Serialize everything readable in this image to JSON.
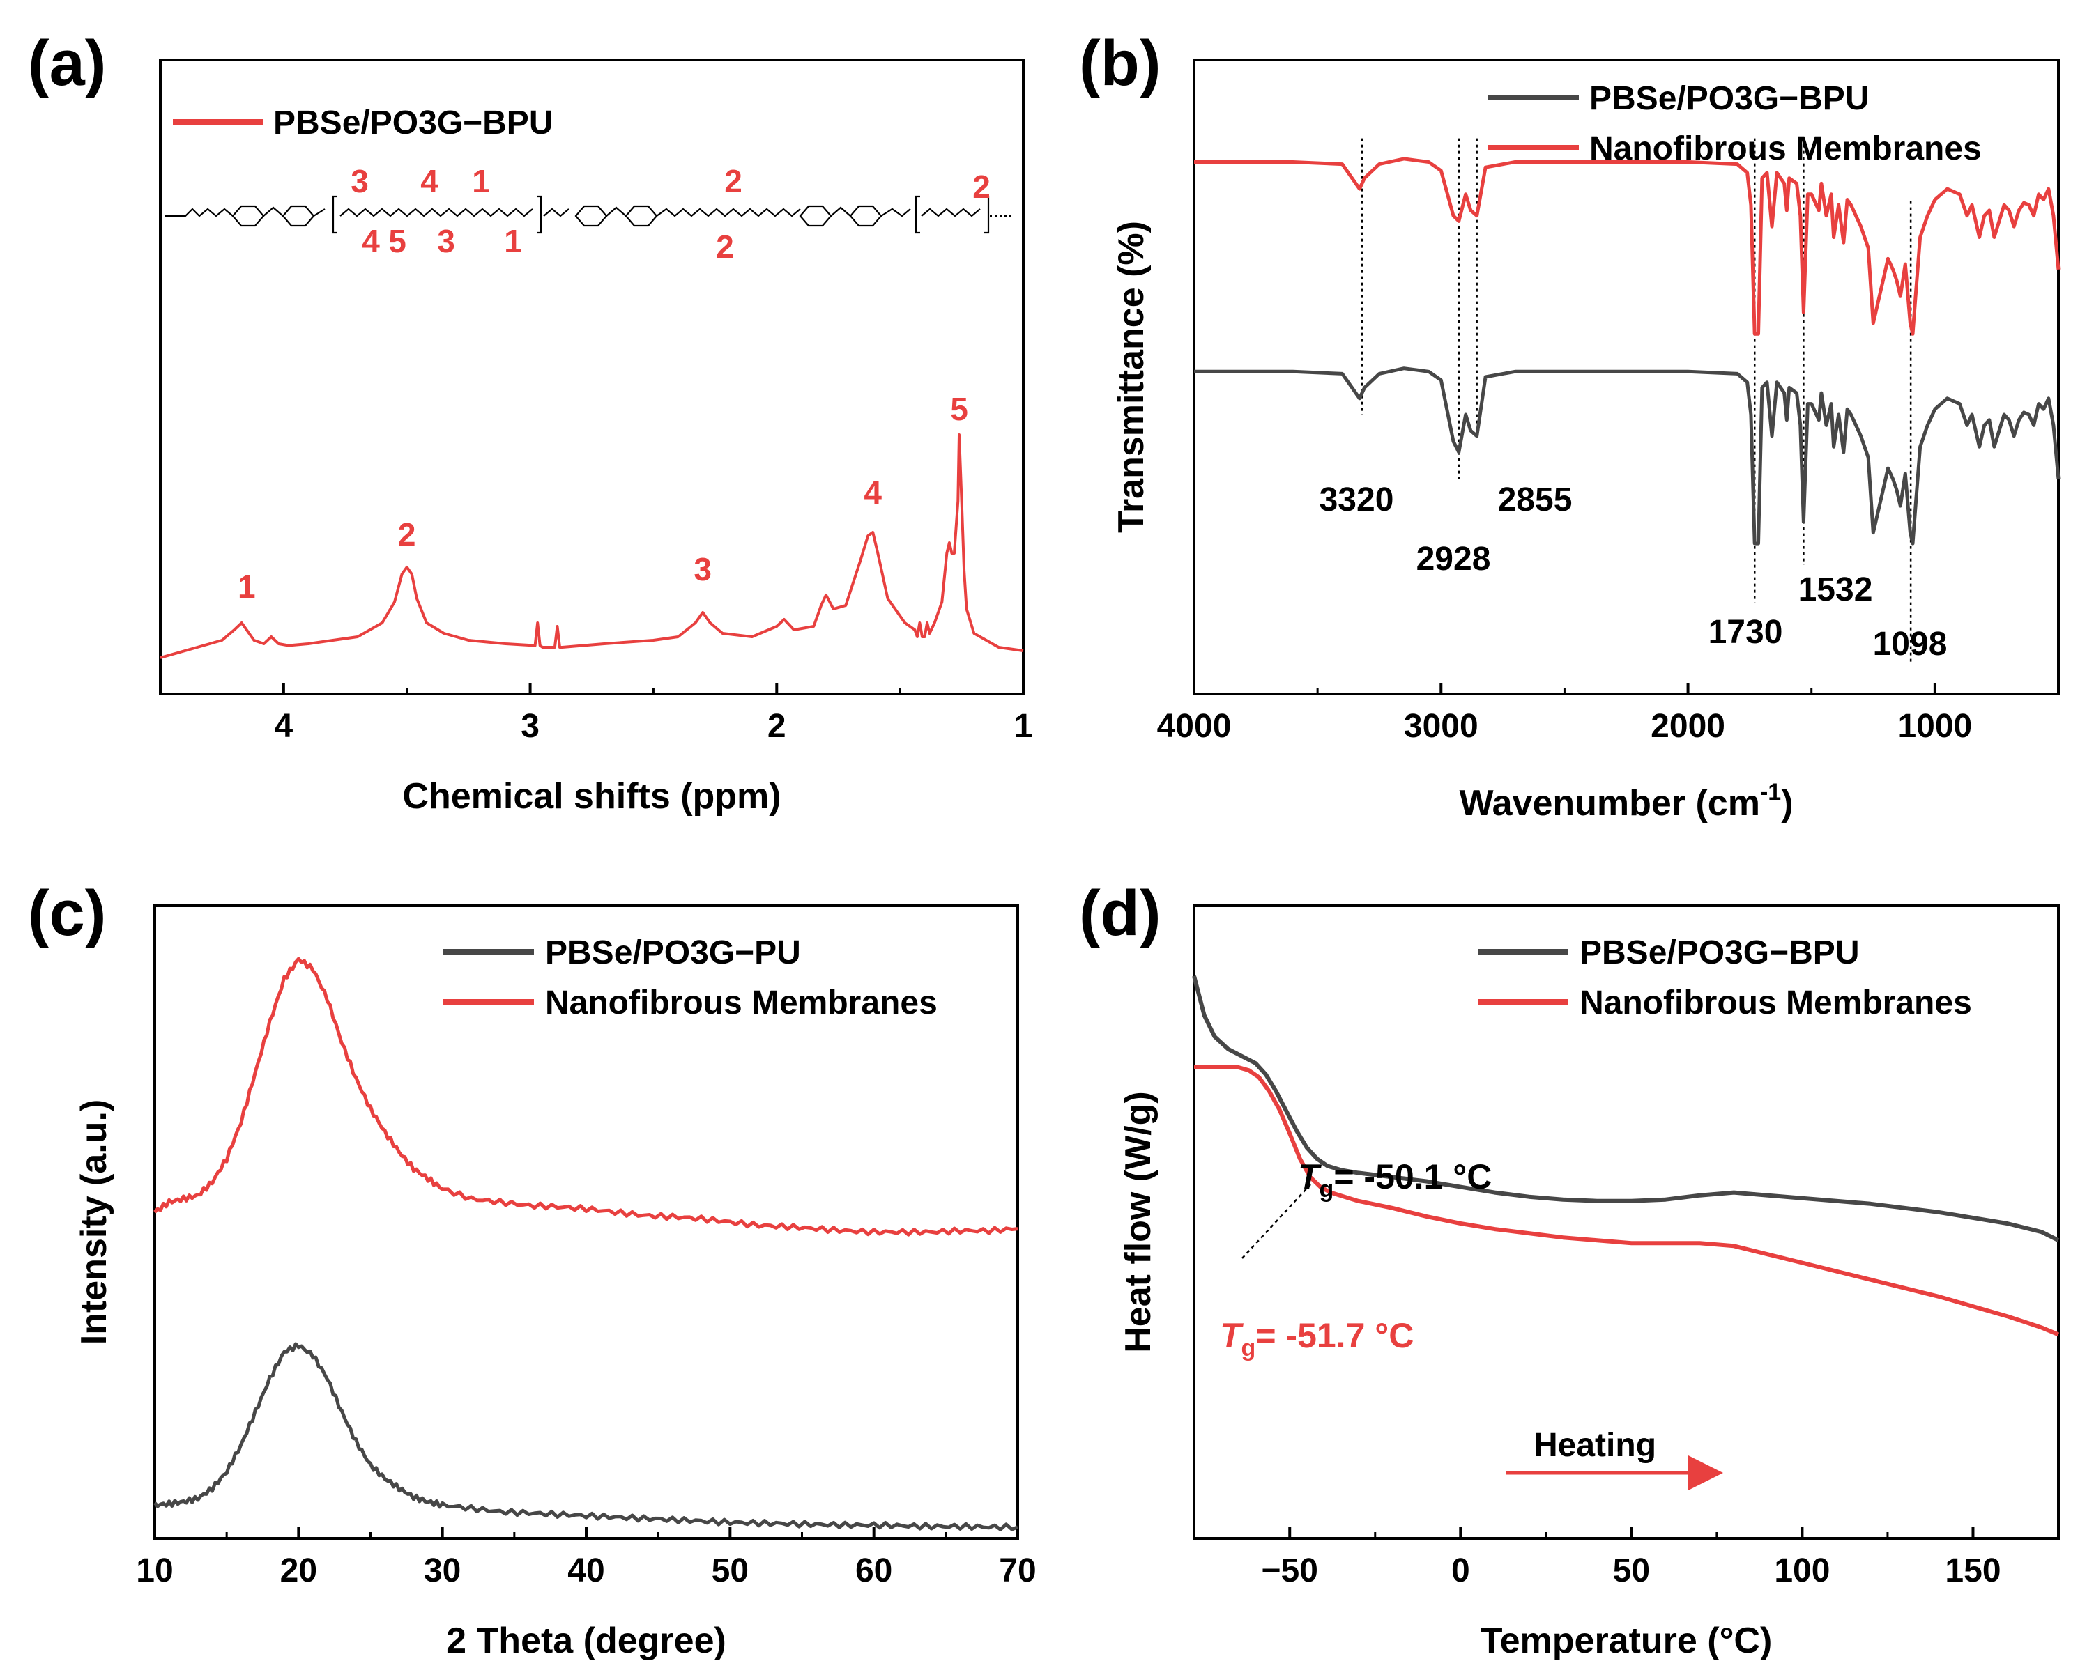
{
  "figure": {
    "colors": {
      "red": "#e8403f",
      "gray": "#474747",
      "black": "#000000"
    }
  },
  "chart_data": [
    {
      "panel": "(a)",
      "type": "line",
      "title": "",
      "xlabel": "Chemical shifts (ppm)",
      "ylabel": "",
      "xlim": [
        4.5,
        1.0
      ],
      "xticks": [
        4,
        3,
        2,
        1
      ],
      "xtick_labels": [
        "4",
        "3",
        "2",
        "1"
      ],
      "legend": [
        "PBSe/PO3G−BPU"
      ],
      "legend_position": "top-left",
      "structure_labels": {
        "top": [
          "3",
          "4",
          "1",
          "2",
          "2"
        ],
        "bottom": [
          "4",
          "5",
          "3",
          "1",
          "2"
        ]
      },
      "structure_name": "polymer-structure-drawing",
      "series": [
        {
          "name": "PBSe/PO3G−BPU",
          "color": "#e8403f",
          "x": [
            4.5,
            4.35,
            4.25,
            4.2,
            4.17,
            4.15,
            4.12,
            4.08,
            4.05,
            4.02,
            3.98,
            3.9,
            3.8,
            3.7,
            3.6,
            3.55,
            3.52,
            3.5,
            3.48,
            3.46,
            3.42,
            3.35,
            3.25,
            3.1,
            2.98,
            2.97,
            2.96,
            2.95,
            2.9,
            2.89,
            2.88,
            2.87,
            2.7,
            2.5,
            2.4,
            2.33,
            2.3,
            2.27,
            2.22,
            2.1,
            2.0,
            1.97,
            1.93,
            1.85,
            1.82,
            1.8,
            1.77,
            1.72,
            1.66,
            1.63,
            1.61,
            1.59,
            1.55,
            1.48,
            1.44,
            1.43,
            1.42,
            1.41,
            1.4,
            1.39,
            1.38,
            1.36,
            1.33,
            1.31,
            1.3,
            1.29,
            1.28,
            1.265,
            1.26,
            1.25,
            1.24,
            1.23,
            1.2,
            1.1,
            1.0
          ],
          "y": [
            0.0,
            0.03,
            0.05,
            0.08,
            0.1,
            0.08,
            0.05,
            0.04,
            0.06,
            0.04,
            0.035,
            0.04,
            0.05,
            0.06,
            0.1,
            0.16,
            0.24,
            0.26,
            0.24,
            0.17,
            0.1,
            0.07,
            0.05,
            0.04,
            0.035,
            0.1,
            0.035,
            0.03,
            0.03,
            0.09,
            0.03,
            0.03,
            0.04,
            0.05,
            0.06,
            0.1,
            0.13,
            0.1,
            0.07,
            0.06,
            0.09,
            0.11,
            0.08,
            0.09,
            0.15,
            0.18,
            0.14,
            0.15,
            0.28,
            0.35,
            0.36,
            0.3,
            0.17,
            0.1,
            0.08,
            0.06,
            0.1,
            0.06,
            0.06,
            0.1,
            0.07,
            0.1,
            0.16,
            0.3,
            0.33,
            0.3,
            0.3,
            0.45,
            0.64,
            0.45,
            0.25,
            0.14,
            0.07,
            0.03,
            0.02
          ]
        }
      ],
      "peak_labels": [
        {
          "label": "1",
          "x": 4.15
        },
        {
          "label": "2",
          "x": 3.5
        },
        {
          "label": "3",
          "x": 2.3
        },
        {
          "label": "4",
          "x": 1.61
        },
        {
          "label": "5",
          "x": 1.26
        }
      ]
    },
    {
      "panel": "(b)",
      "type": "line",
      "title": "",
      "xlabel": "Wavenumber (cm",
      "xlabel_sup": "-1",
      "xlabel_end": ")",
      "ylabel": "Transmittance (%)",
      "xlim": [
        4000,
        500
      ],
      "xticks": [
        4000,
        3000,
        2000,
        1000
      ],
      "xtick_labels": [
        "4000",
        "3000",
        "2000",
        "1000"
      ],
      "legend": [
        "PBSe/PO3G−BPU",
        "Nanofibrous Membranes"
      ],
      "legend_position": "top-right",
      "series": [
        {
          "name": "Nanofibrous Membranes",
          "color": "#e8403f",
          "offset": 0,
          "x": [
            4000,
            3600,
            3400,
            3330,
            3310,
            3250,
            3150,
            3050,
            3000,
            2950,
            2928,
            2900,
            2880,
            2855,
            2820,
            2700,
            2500,
            2000,
            1800,
            1760,
            1745,
            1730,
            1715,
            1700,
            1680,
            1660,
            1640,
            1610,
            1600,
            1590,
            1560,
            1545,
            1532,
            1515,
            1500,
            1470,
            1460,
            1440,
            1420,
            1410,
            1390,
            1370,
            1355,
            1340,
            1300,
            1270,
            1250,
            1230,
            1210,
            1190,
            1170,
            1155,
            1140,
            1120,
            1100,
            1090,
            1080,
            1060,
            1030,
            1000,
            950,
            900,
            870,
            850,
            820,
            800,
            780,
            760,
            740,
            720,
            700,
            680,
            660,
            640,
            620,
            600,
            580,
            560,
            540,
            520,
            500
          ],
          "y": [
            0,
            0,
            -0.02,
            -0.25,
            -0.15,
            -0.02,
            0.03,
            0,
            -0.08,
            -0.5,
            -0.55,
            -0.3,
            -0.45,
            -0.5,
            -0.05,
            0,
            0,
            0,
            -0.02,
            -0.1,
            -0.4,
            -1.6,
            -1.6,
            -0.15,
            -0.1,
            -0.6,
            -0.1,
            -0.2,
            -0.45,
            -0.15,
            -0.2,
            -0.5,
            -1.4,
            -0.3,
            -0.3,
            -0.45,
            -0.2,
            -0.5,
            -0.3,
            -0.7,
            -0.4,
            -0.75,
            -0.35,
            -0.4,
            -0.6,
            -0.8,
            -1.5,
            -1.3,
            -1.1,
            -0.9,
            -1.0,
            -1.1,
            -1.25,
            -0.95,
            -1.5,
            -1.6,
            -1.3,
            -0.7,
            -0.5,
            -0.35,
            -0.25,
            -0.3,
            -0.5,
            -0.4,
            -0.7,
            -0.5,
            -0.45,
            -0.7,
            -0.55,
            -0.4,
            -0.45,
            -0.6,
            -0.45,
            -0.38,
            -0.4,
            -0.5,
            -0.3,
            -0.35,
            -0.25,
            -0.5,
            -1.0
          ]
        },
        {
          "name": "PBSe/PO3G−BPU",
          "color": "#474747",
          "offset": -1.95,
          "x": [
            4000,
            3600,
            3400,
            3330,
            3310,
            3250,
            3150,
            3050,
            3000,
            2950,
            2928,
            2900,
            2880,
            2855,
            2820,
            2700,
            2500,
            2000,
            1800,
            1760,
            1745,
            1730,
            1715,
            1700,
            1680,
            1660,
            1640,
            1610,
            1600,
            1590,
            1560,
            1545,
            1532,
            1515,
            1500,
            1470,
            1460,
            1440,
            1420,
            1410,
            1390,
            1370,
            1355,
            1340,
            1300,
            1270,
            1250,
            1230,
            1210,
            1190,
            1170,
            1155,
            1140,
            1120,
            1100,
            1090,
            1080,
            1060,
            1030,
            1000,
            950,
            900,
            870,
            850,
            820,
            800,
            780,
            760,
            740,
            720,
            700,
            680,
            660,
            640,
            620,
            600,
            580,
            560,
            540,
            520,
            500
          ],
          "y": [
            0,
            0,
            -0.02,
            -0.25,
            -0.15,
            -0.02,
            0.03,
            0,
            -0.08,
            -0.65,
            -0.75,
            -0.4,
            -0.55,
            -0.6,
            -0.05,
            0,
            0,
            0,
            -0.02,
            -0.1,
            -0.4,
            -1.6,
            -1.6,
            -0.15,
            -0.1,
            -0.6,
            -0.1,
            -0.2,
            -0.45,
            -0.15,
            -0.2,
            -0.5,
            -1.4,
            -0.3,
            -0.3,
            -0.45,
            -0.2,
            -0.5,
            -0.3,
            -0.7,
            -0.4,
            -0.75,
            -0.35,
            -0.4,
            -0.6,
            -0.8,
            -1.5,
            -1.3,
            -1.1,
            -0.9,
            -1.0,
            -1.1,
            -1.25,
            -0.95,
            -1.5,
            -1.6,
            -1.3,
            -0.7,
            -0.5,
            -0.35,
            -0.25,
            -0.3,
            -0.5,
            -0.4,
            -0.7,
            -0.5,
            -0.45,
            -0.7,
            -0.55,
            -0.4,
            -0.45,
            -0.6,
            -0.45,
            -0.38,
            -0.4,
            -0.5,
            -0.3,
            -0.35,
            -0.25,
            -0.5,
            -1.0
          ]
        }
      ],
      "ylim": [
        -4.95,
        0.95
      ],
      "reference_lines": [
        3320,
        2928,
        2855,
        1730,
        1532,
        1098
      ],
      "peak_labels": [
        "3320",
        "2928",
        "2855",
        "1730",
        "1532",
        "1098"
      ]
    },
    {
      "panel": "(c)",
      "type": "line",
      "title": "",
      "xlabel": "2 Theta (degree)",
      "ylabel": "Intensity (a.u.)",
      "xlim": [
        10,
        70
      ],
      "ylim": [
        -0.5,
        9.0
      ],
      "xticks": [
        10,
        20,
        30,
        40,
        50,
        60,
        70
      ],
      "xtick_labels": [
        "10",
        "20",
        "30",
        "40",
        "50",
        "60",
        "70"
      ],
      "legend": [
        "PBSe/PO3G−PU",
        "Nanofibrous Membranes"
      ],
      "legend_position": "top-right",
      "series": [
        {
          "name": "Nanofibrous Membranes",
          "color": "#e8403f",
          "x": [
            10,
            11,
            12,
            13,
            14,
            15,
            16,
            17,
            18,
            19,
            20,
            21,
            22,
            23,
            24,
            25,
            26,
            27,
            28,
            29,
            30,
            32,
            34,
            36,
            38,
            40,
            42,
            44,
            46,
            48,
            50,
            52,
            54,
            56,
            58,
            60,
            62,
            64,
            66,
            68,
            70
          ],
          "y": [
            4.4,
            4.55,
            4.6,
            4.65,
            4.85,
            5.2,
            5.75,
            6.5,
            7.25,
            7.9,
            8.2,
            8.05,
            7.6,
            6.95,
            6.4,
            5.95,
            5.6,
            5.3,
            5.05,
            4.9,
            4.75,
            4.6,
            4.55,
            4.5,
            4.48,
            4.45,
            4.4,
            4.35,
            4.33,
            4.3,
            4.25,
            4.2,
            4.18,
            4.15,
            4.12,
            4.1,
            4.1,
            4.1,
            4.12,
            4.12,
            4.15
          ]
        },
        {
          "name": "PBSe/PO3G−PU",
          "color": "#474747",
          "x": [
            10,
            11,
            12,
            13,
            14,
            15,
            16,
            17,
            18,
            19,
            20,
            21,
            22,
            23,
            24,
            25,
            26,
            27,
            28,
            29,
            30,
            32,
            34,
            36,
            38,
            40,
            42,
            44,
            46,
            48,
            50,
            52,
            54,
            56,
            58,
            60,
            62,
            64,
            66,
            68,
            70
          ],
          "y": [
            0.0,
            0.02,
            0.05,
            0.1,
            0.25,
            0.5,
            0.9,
            1.4,
            1.9,
            2.3,
            2.4,
            2.25,
            1.9,
            1.4,
            0.95,
            0.6,
            0.4,
            0.25,
            0.12,
            0.05,
            0.0,
            -0.05,
            -0.1,
            -0.12,
            -0.14,
            -0.16,
            -0.18,
            -0.2,
            -0.22,
            -0.24,
            -0.26,
            -0.27,
            -0.28,
            -0.29,
            -0.3,
            -0.3,
            -0.31,
            -0.32,
            -0.32,
            -0.33,
            -0.33
          ]
        }
      ]
    },
    {
      "panel": "(d)",
      "type": "line",
      "title": "",
      "xlabel": "Temperature (°C)",
      "ylabel": "Heat flow (W/g)",
      "xlim": [
        -78,
        175
      ],
      "ylim": [
        -3.0,
        1.5
      ],
      "xticks": [
        -50,
        0,
        50,
        100,
        150
      ],
      "xtick_labels": [
        "−50",
        "0",
        "50",
        "100",
        "150"
      ],
      "legend": [
        "PBSe/PO3G−BPU",
        "Nanofibrous Membranes"
      ],
      "legend_position": "top-right",
      "series": [
        {
          "name": "PBSe/PO3G−BPU",
          "color": "#474747",
          "x": [
            -78,
            -75,
            -72,
            -68,
            -64,
            -60,
            -57,
            -54,
            -51,
            -48,
            -45,
            -42,
            -39,
            -35,
            -30,
            -20,
            -10,
            0,
            10,
            20,
            30,
            40,
            50,
            60,
            70,
            80,
            90,
            100,
            110,
            120,
            130,
            140,
            150,
            160,
            170,
            175
          ],
          "y": [
            1.0,
            0.72,
            0.57,
            0.48,
            0.43,
            0.38,
            0.3,
            0.18,
            0.04,
            -0.1,
            -0.22,
            -0.3,
            -0.35,
            -0.38,
            -0.4,
            -0.43,
            -0.46,
            -0.5,
            -0.54,
            -0.57,
            -0.59,
            -0.6,
            -0.6,
            -0.59,
            -0.56,
            -0.54,
            -0.56,
            -0.58,
            -0.6,
            -0.62,
            -0.65,
            -0.68,
            -0.72,
            -0.76,
            -0.82,
            -0.88
          ]
        },
        {
          "name": "Nanofibrous Membranes",
          "color": "#e8403f",
          "x": [
            -78,
            -75,
            -70,
            -65,
            -62,
            -59,
            -56,
            -53,
            -50,
            -47,
            -44,
            -41,
            -38,
            -34,
            -30,
            -20,
            -10,
            0,
            10,
            20,
            30,
            40,
            50,
            60,
            70,
            80,
            90,
            100,
            110,
            120,
            130,
            140,
            150,
            160,
            170,
            175
          ],
          "y": [
            0.35,
            0.35,
            0.35,
            0.35,
            0.33,
            0.28,
            0.18,
            0.05,
            -0.12,
            -0.3,
            -0.43,
            -0.5,
            -0.54,
            -0.57,
            -0.6,
            -0.65,
            -0.71,
            -0.76,
            -0.8,
            -0.83,
            -0.86,
            -0.88,
            -0.9,
            -0.9,
            -0.9,
            -0.92,
            -0.98,
            -1.04,
            -1.1,
            -1.16,
            -1.22,
            -1.28,
            -1.35,
            -1.42,
            -1.5,
            -1.55
          ]
        }
      ],
      "tg_annotations": [
        {
          "prefix": "T",
          "sub": "g",
          "value": "= -50.1 °C",
          "color": "#000000"
        },
        {
          "prefix": "T",
          "sub": "g",
          "value": "= -51.7 °C",
          "color": "#e8403f"
        }
      ],
      "arrow_label": "Heating"
    }
  ]
}
